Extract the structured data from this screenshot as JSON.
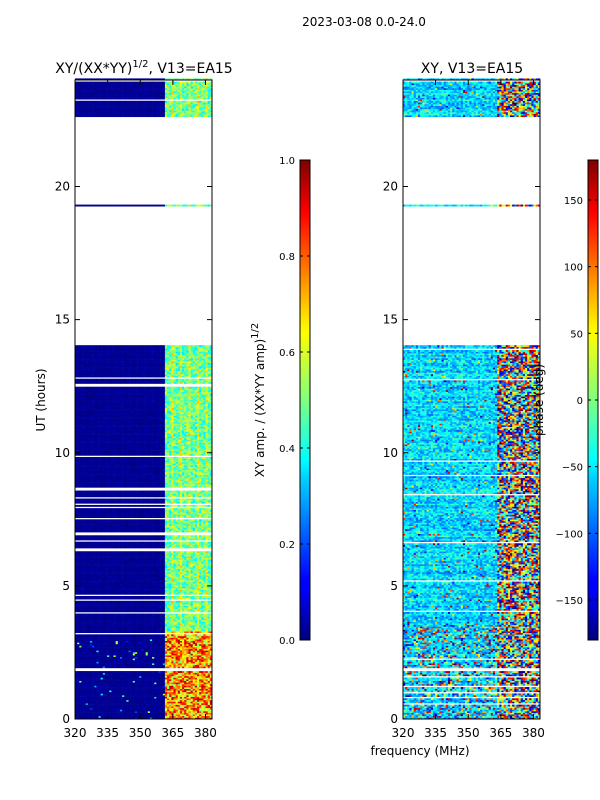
{
  "suptitle": "2023-03-08 0.0-24.0",
  "chart_data": [
    {
      "type": "heatmap",
      "title_main": "XY/(XX*YY)",
      "title_sup": "1/2",
      "title_rest": ", V13=EA15",
      "xlabel": "",
      "ylabel": "UT (hours)",
      "xlim": [
        320,
        383
      ],
      "ylim": [
        0,
        24
      ],
      "xticks": [
        320,
        335,
        350,
        365,
        380
      ],
      "yticks": [
        0,
        5,
        10,
        15,
        20
      ],
      "colormap": "jet",
      "colorbar": {
        "label_main": "XY amp. / (XX*YY amp)",
        "label_sup": "1/2",
        "range": [
          0.0,
          1.0
        ],
        "ticks": [
          0.0,
          0.2,
          0.4,
          0.6,
          0.8,
          1.0
        ],
        "tick_labels": [
          "0.0",
          "0.2",
          "0.4",
          "0.6",
          "0.8",
          "1.0"
        ]
      },
      "data_time_ranges_hours": [
        [
          0.0,
          14.0
        ],
        [
          19.2,
          19.3
        ],
        [
          22.6,
          24.0
        ]
      ],
      "bright_band_mhz": [
        361,
        383
      ]
    },
    {
      "type": "heatmap",
      "title_main": "XY, V13=EA15",
      "xlabel": "frequency (MHz)",
      "ylabel": "",
      "xlim": [
        320,
        383
      ],
      "ylim": [
        0,
        24
      ],
      "xticks": [
        320,
        335,
        350,
        365,
        380
      ],
      "yticks": [
        0,
        5,
        10,
        15,
        20
      ],
      "colormap": "jet",
      "colorbar": {
        "label_main": "phase (deg)",
        "range": [
          -180,
          180
        ],
        "ticks": [
          -150,
          -100,
          -50,
          0,
          50,
          100,
          150
        ],
        "tick_labels": [
          "−150",
          "−100",
          "−50",
          "0",
          "50",
          "100",
          "150"
        ]
      },
      "data_time_ranges_hours": [
        [
          0.0,
          14.0
        ],
        [
          19.2,
          19.3
        ],
        [
          22.6,
          24.0
        ]
      ]
    }
  ]
}
